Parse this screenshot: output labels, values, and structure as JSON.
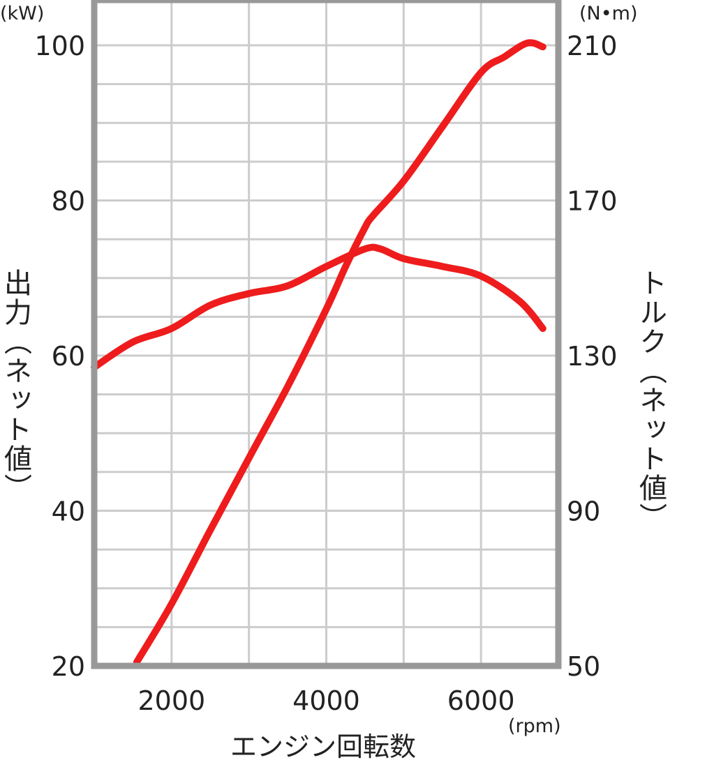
{
  "chart_data": {
    "type": "line",
    "xlabel": "エンジン回転数",
    "x_unit": "(rpm)",
    "xlim": [
      1000,
      7000
    ],
    "x_ticks": [
      2000,
      4000,
      6000
    ],
    "ylabel_left": "出力（ネット値）",
    "y_unit_left": "(kW)",
    "ylim_left": [
      20,
      100
    ],
    "y_ticks_left": [
      20,
      40,
      60,
      80,
      100
    ],
    "ylabel_right": "トルク（ネット値）",
    "y_unit_right": "(N•m)",
    "ylim_right": [
      50,
      210
    ],
    "y_ticks_right": [
      50,
      90,
      130,
      170,
      210
    ],
    "grid": true,
    "line_color": "#ee1c1c",
    "frame_color": "#999999",
    "grid_color": "#cccccc",
    "series": [
      {
        "axis": "left",
        "x": [
          1550,
          2000,
          2500,
          3000,
          3500,
          4000,
          4250,
          4500,
          4600,
          5000,
          5500,
          6000,
          6300,
          6600,
          6800
        ],
        "values": [
          20.5,
          28,
          37.5,
          46.8,
          56,
          66,
          71.5,
          76.5,
          78,
          82.5,
          89.5,
          96.5,
          98.5,
          100.3,
          99.8
        ]
      },
      {
        "axis": "right",
        "x": [
          1000,
          1500,
          2000,
          2500,
          3000,
          3500,
          4000,
          4500,
          4700,
          5000,
          5500,
          6000,
          6500,
          6800
        ],
        "values": [
          127,
          133.5,
          137,
          143,
          146,
          148,
          153,
          157.5,
          157.5,
          155,
          153,
          150.5,
          144,
          137
        ]
      }
    ]
  }
}
